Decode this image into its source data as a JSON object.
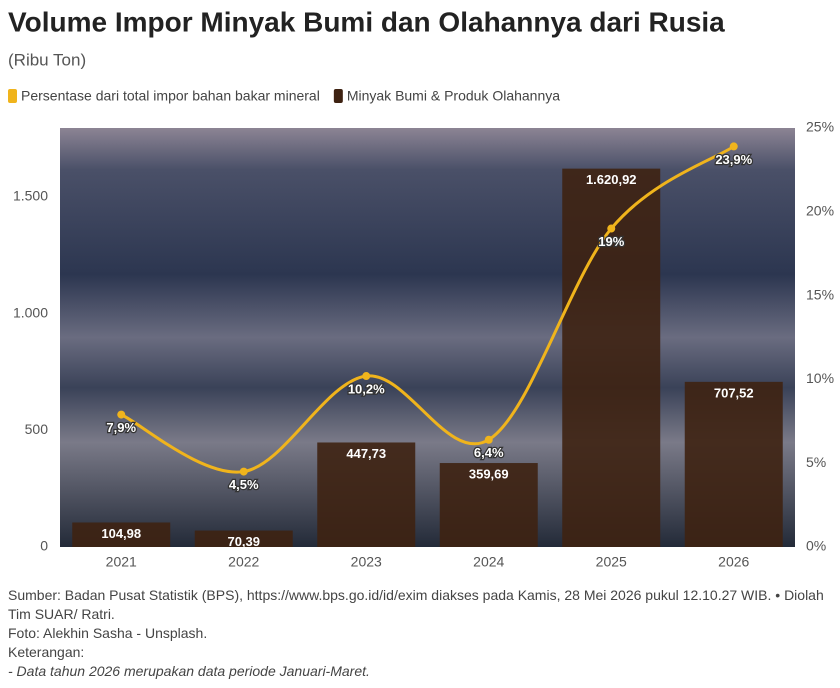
{
  "chart_data": {
    "type": "bar_line",
    "title": "Volume Impor Minyak Bumi dan Olahannya dari Rusia",
    "subtitle": "(Ribu Ton)",
    "categories": [
      "2021",
      "2022",
      "2023",
      "2024",
      "2025",
      "2026"
    ],
    "series": [
      {
        "name": "Minyak Bumi & Produk Olahannya",
        "type": "bar",
        "color": "#3e2212",
        "values": [
          104.98,
          70.39,
          447.73,
          359.69,
          1620.92,
          707.52
        ],
        "value_labels": [
          "104,98",
          "70,39",
          "447,73",
          "359,69",
          "1.620,92",
          "707,52"
        ]
      },
      {
        "name": "Persentase dari total impor bahan bakar mineral",
        "type": "line",
        "axis": "y2",
        "color": "#f0b41c",
        "values": [
          7.9,
          4.5,
          10.2,
          6.4,
          19,
          23.9
        ],
        "value_labels": [
          "7,9%",
          "4,5%",
          "10,2%",
          "6,4%",
          "19%",
          "23,9%"
        ]
      }
    ],
    "legend_order": [
      1,
      0
    ],
    "ylim": [
      0,
      1795
    ],
    "yticks": [
      0,
      500,
      {
        "value": 1000,
        "label": "1.000"
      },
      {
        "value": 1500,
        "label": "1.500"
      }
    ],
    "y2lim": [
      0,
      25
    ],
    "y2ticks": [
      {
        "value": 0,
        "label": "0%"
      },
      {
        "value": 5,
        "label": "5%"
      },
      {
        "value": 10,
        "label": "10%"
      },
      {
        "value": 15,
        "label": "15%"
      },
      {
        "value": 20,
        "label": "20%"
      },
      {
        "value": 25,
        "label": "25%"
      }
    ],
    "grid": false,
    "source": "Sumber: Badan Pusat Statistik (BPS), https://www.bps.go.id/id/exim diakses pada Kamis, 28 Mei 2026 pukul 12.10.27 WIB. • Diolah Tim SUAR/ Ratri.",
    "photo_credit": "Foto: Alekhin Sasha - Unsplash.",
    "notes_title": "Keterangan:",
    "notes": [
      "- Data tahun 2026 merupakan data periode Januari-Maret."
    ]
  }
}
